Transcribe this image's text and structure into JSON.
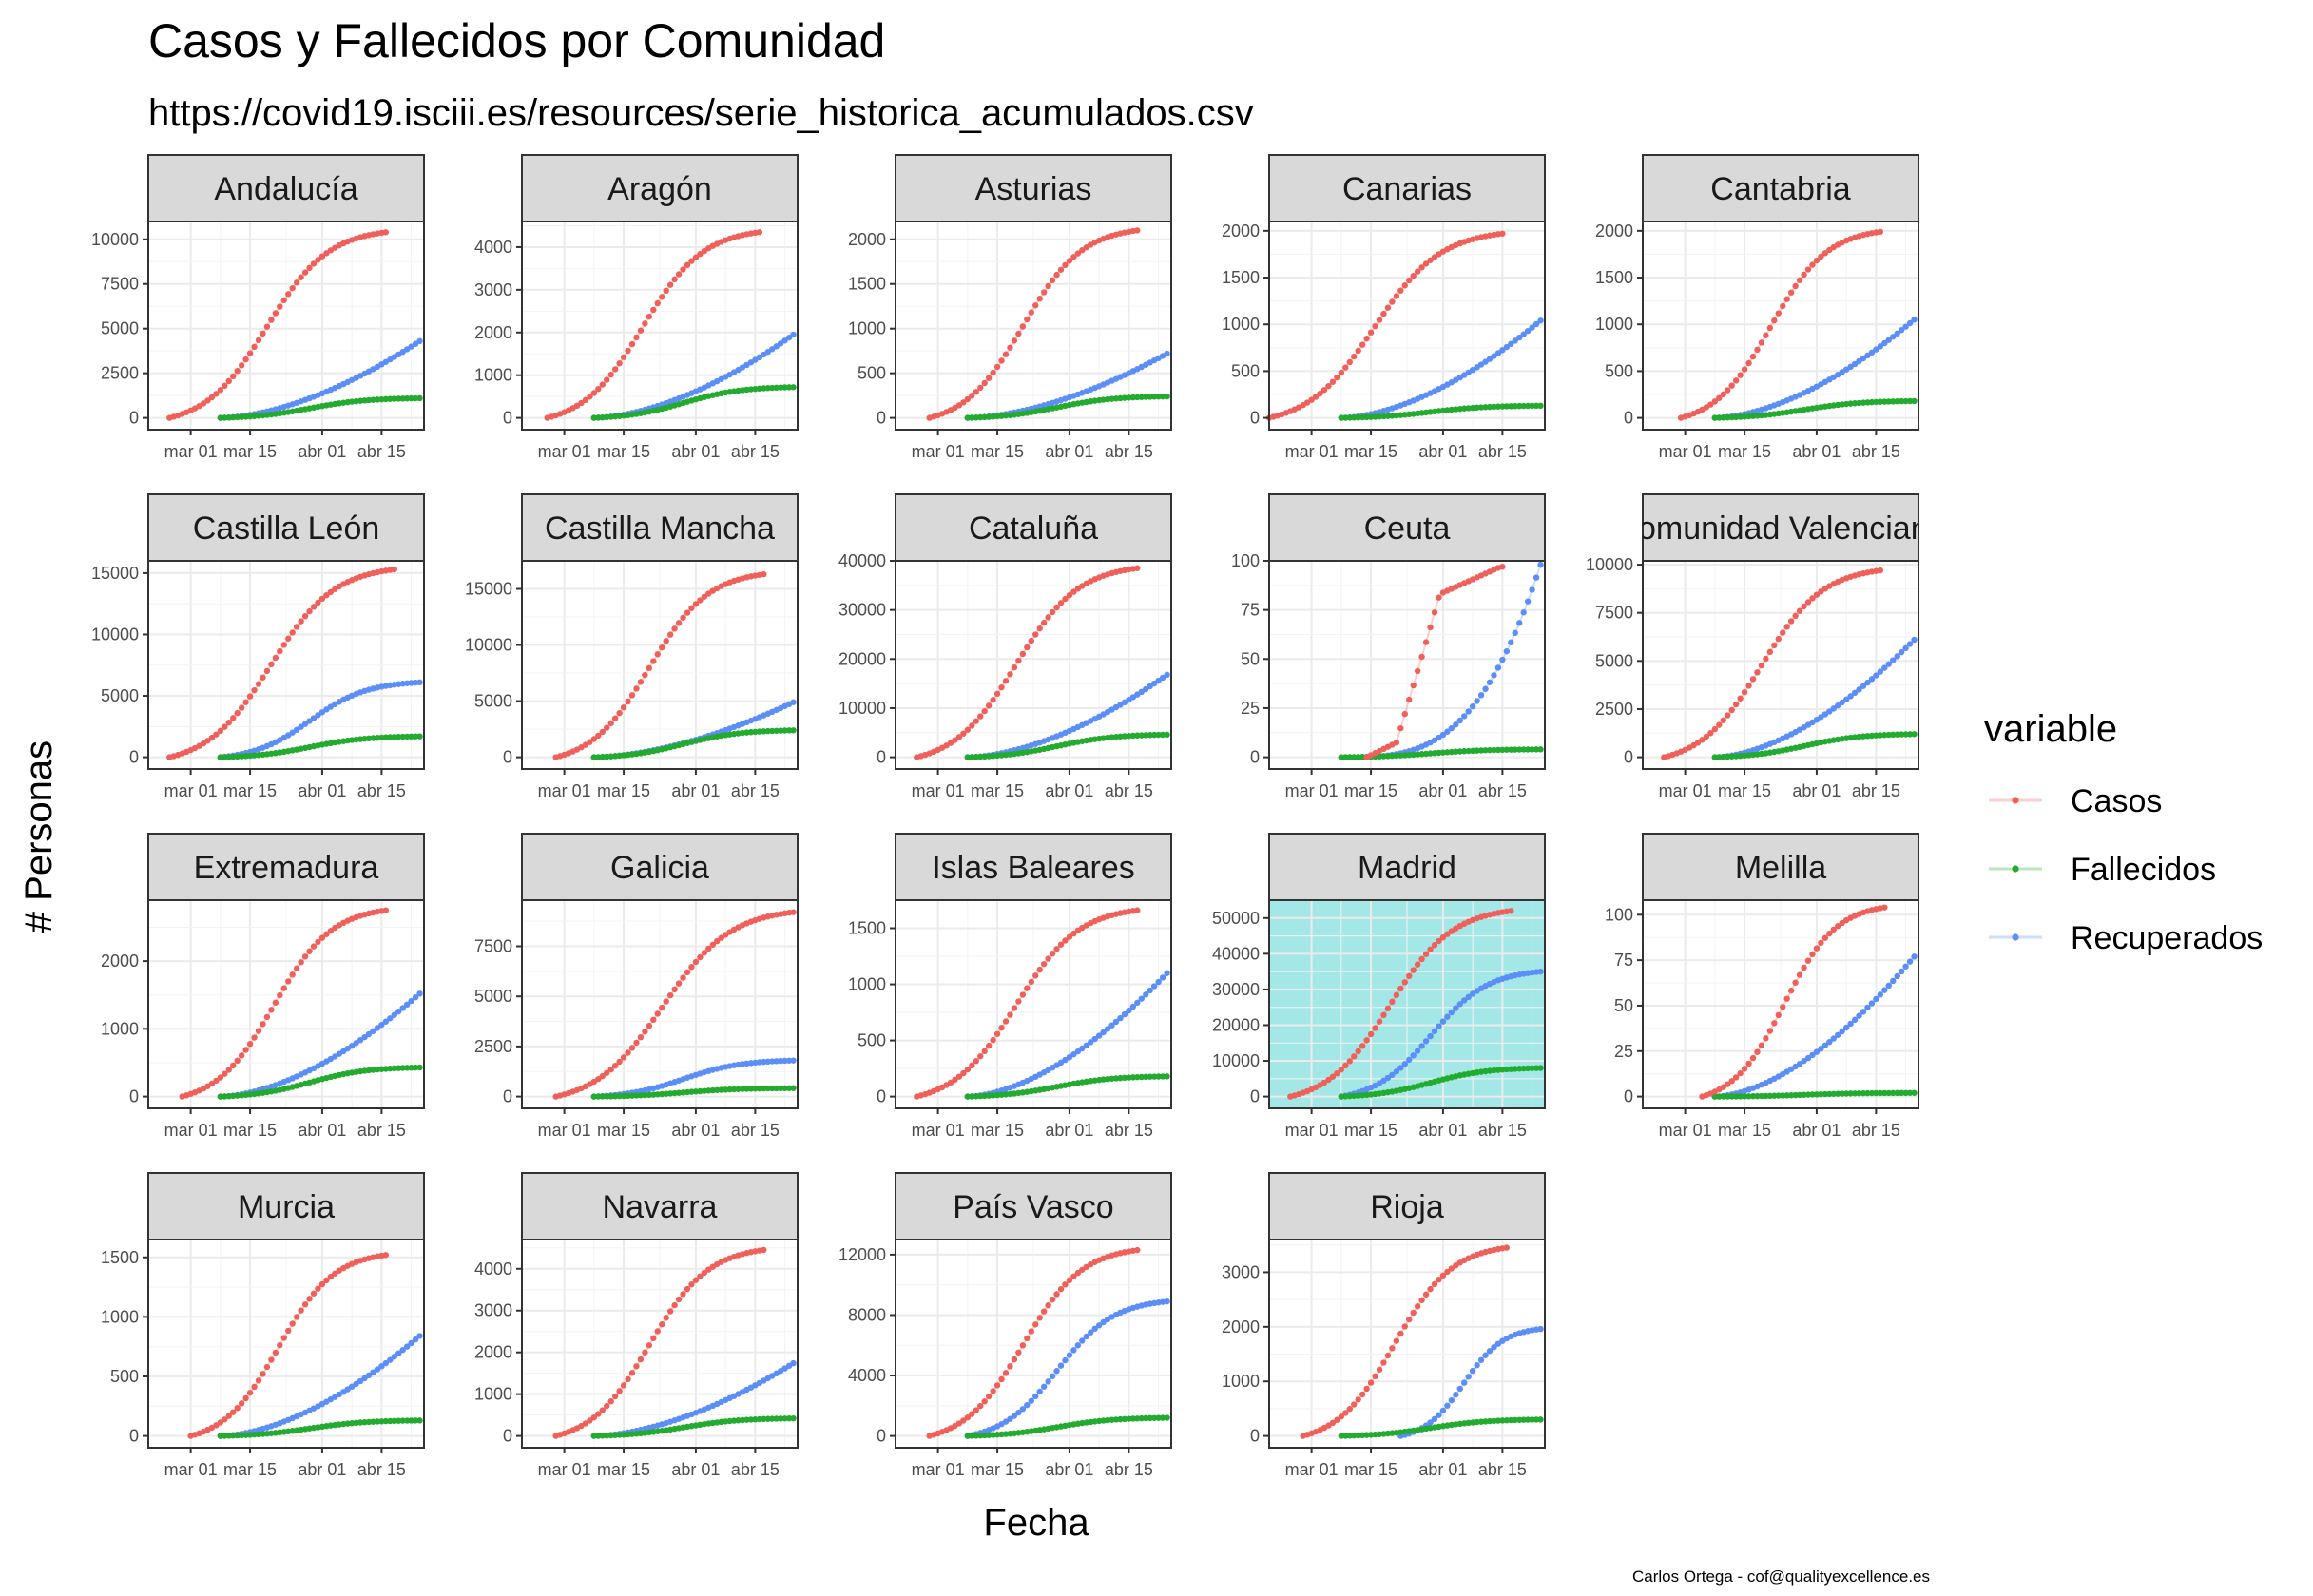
{
  "title": "Casos y Fallecidos por Comunidad",
  "subtitle": "https://covid19.isciii.es/resources/serie_historica_acumulados.csv",
  "caption": "Carlos Ortega - cof@qualityexcellence.es",
  "chart_data": {
    "type": "scatter",
    "xlabel": "Fecha",
    "ylabel": "# Personas",
    "x_ticks": [
      "mar 01",
      "mar 15",
      "abr 01",
      "abr 15"
    ],
    "x_range": [
      "2020-02-20",
      "2020-04-25"
    ],
    "legend": {
      "title": "variable",
      "position": "right",
      "entries": [
        {
          "name": "Casos",
          "color": "#f0605a"
        },
        {
          "name": "Fallecidos",
          "color": "#22ab2e"
        },
        {
          "name": "Recuperados",
          "color": "#5b8ef6"
        }
      ]
    },
    "grid": true,
    "highlight": {
      "panel": "Madrid",
      "color": "#a3e8e6"
    },
    "panels": [
      {
        "name": "Andalucía",
        "ymax": 11000,
        "yticks": [
          0,
          2500,
          5000,
          7500,
          10000
        ],
        "ytick_labels": [
          "0",
          "2500",
          "5000",
          "7500",
          "10000"
        ],
        "series": {
          "Casos": {
            "start": "2020-02-25",
            "end": "2020-04-16",
            "final": 10400,
            "shape": "s"
          },
          "Fallecidos": {
            "start": "2020-03-08",
            "end": "2020-04-24",
            "final": 1100,
            "shape": "s"
          },
          "Recuperados": {
            "start": "2020-03-08",
            "end": "2020-04-24",
            "final": 4300,
            "shape": "late"
          }
        }
      },
      {
        "name": "Aragón",
        "ymax": 4600,
        "yticks": [
          0,
          1000,
          2000,
          3000,
          4000
        ],
        "ytick_labels": [
          "0",
          "1000",
          "2000",
          "3000",
          "4000"
        ],
        "series": {
          "Casos": {
            "start": "2020-02-26",
            "end": "2020-04-16",
            "final": 4350,
            "shape": "s"
          },
          "Fallecidos": {
            "start": "2020-03-08",
            "end": "2020-04-24",
            "final": 720,
            "shape": "s"
          },
          "Recuperados": {
            "start": "2020-03-08",
            "end": "2020-04-24",
            "final": 1950,
            "shape": "late"
          }
        }
      },
      {
        "name": "Asturias",
        "ymax": 2200,
        "yticks": [
          0,
          500,
          1000,
          1500,
          2000
        ],
        "ytick_labels": [
          "0",
          "500",
          "1000",
          "1500",
          "2000"
        ],
        "series": {
          "Casos": {
            "start": "2020-02-28",
            "end": "2020-04-17",
            "final": 2100,
            "shape": "s"
          },
          "Fallecidos": {
            "start": "2020-03-08",
            "end": "2020-04-24",
            "final": 240,
            "shape": "s"
          },
          "Recuperados": {
            "start": "2020-03-08",
            "end": "2020-04-24",
            "final": 720,
            "shape": "late"
          }
        }
      },
      {
        "name": "Canarias",
        "ymax": 2100,
        "yticks": [
          0,
          500,
          1000,
          1500,
          2000
        ],
        "ytick_labels": [
          "0",
          "500",
          "1000",
          "1500",
          "2000"
        ],
        "series": {
          "Casos": {
            "start": "2020-02-20",
            "end": "2020-04-15",
            "final": 1970,
            "shape": "s"
          },
          "Fallecidos": {
            "start": "2020-03-08",
            "end": "2020-04-24",
            "final": 130,
            "shape": "s"
          },
          "Recuperados": {
            "start": "2020-03-08",
            "end": "2020-04-24",
            "final": 1040,
            "shape": "late"
          }
        }
      },
      {
        "name": "Cantabria",
        "ymax": 2100,
        "yticks": [
          0,
          500,
          1000,
          1500,
          2000
        ],
        "ytick_labels": [
          "0",
          "500",
          "1000",
          "1500",
          "2000"
        ],
        "series": {
          "Casos": {
            "start": "2020-02-29",
            "end": "2020-04-16",
            "final": 1990,
            "shape": "s"
          },
          "Fallecidos": {
            "start": "2020-03-08",
            "end": "2020-04-24",
            "final": 180,
            "shape": "s"
          },
          "Recuperados": {
            "start": "2020-03-08",
            "end": "2020-04-24",
            "final": 1050,
            "shape": "late"
          }
        }
      },
      {
        "name": "Castilla León",
        "ymax": 16000,
        "yticks": [
          0,
          5000,
          10000,
          15000
        ],
        "ytick_labels": [
          "0",
          "5000",
          "10000",
          "15000"
        ],
        "series": {
          "Casos": {
            "start": "2020-02-25",
            "end": "2020-04-18",
            "final": 15300,
            "shape": "s"
          },
          "Fallecidos": {
            "start": "2020-03-08",
            "end": "2020-04-24",
            "final": 1700,
            "shape": "s"
          },
          "Recuperados": {
            "start": "2020-03-08",
            "end": "2020-04-24",
            "final": 6100,
            "shape": "s"
          }
        }
      },
      {
        "name": "Castilla Mancha",
        "ymax": 17500,
        "yticks": [
          0,
          5000,
          10000,
          15000
        ],
        "ytick_labels": [
          "0",
          "5000",
          "10000",
          "15000"
        ],
        "series": {
          "Casos": {
            "start": "2020-02-28",
            "end": "2020-04-17",
            "final": 16300,
            "shape": "s"
          },
          "Fallecidos": {
            "start": "2020-03-08",
            "end": "2020-04-24",
            "final": 2400,
            "shape": "s"
          },
          "Recuperados": {
            "start": "2020-03-08",
            "end": "2020-04-24",
            "final": 4900,
            "shape": "late"
          }
        }
      },
      {
        "name": "Cataluña",
        "ymax": 40000,
        "yticks": [
          0,
          10000,
          20000,
          30000,
          40000
        ],
        "ytick_labels": [
          "0",
          "10000",
          "20000",
          "30000",
          "40000"
        ],
        "series": {
          "Casos": {
            "start": "2020-02-25",
            "end": "2020-04-17",
            "final": 38500,
            "shape": "s"
          },
          "Fallecidos": {
            "start": "2020-03-08",
            "end": "2020-04-24",
            "final": 4600,
            "shape": "s"
          },
          "Recuperados": {
            "start": "2020-03-08",
            "end": "2020-04-24",
            "final": 16800,
            "shape": "late"
          }
        }
      },
      {
        "name": "Ceuta",
        "ymax": 100,
        "yticks": [
          0,
          25,
          50,
          75,
          100
        ],
        "ytick_labels": [
          "0",
          "25",
          "50",
          "75",
          "100"
        ],
        "series": {
          "Casos": {
            "start": "2020-03-14",
            "end": "2020-04-15",
            "final": 97,
            "shape": "step"
          },
          "Fallecidos": {
            "start": "2020-03-08",
            "end": "2020-04-24",
            "final": 4,
            "shape": "s"
          },
          "Recuperados": {
            "start": "2020-03-08",
            "end": "2020-04-24",
            "final": 98,
            "shape": "verylate"
          }
        }
      },
      {
        "name": "Comunidad Valenciana",
        "ymax": 10200,
        "yticks": [
          0,
          2500,
          5000,
          7500,
          10000
        ],
        "ytick_labels": [
          "0",
          "2500",
          "5000",
          "7500",
          "10000"
        ],
        "series": {
          "Casos": {
            "start": "2020-02-25",
            "end": "2020-04-16",
            "final": 9700,
            "shape": "s"
          },
          "Fallecidos": {
            "start": "2020-03-08",
            "end": "2020-04-24",
            "final": 1200,
            "shape": "s"
          },
          "Recuperados": {
            "start": "2020-03-08",
            "end": "2020-04-24",
            "final": 6100,
            "shape": "late"
          }
        }
      },
      {
        "name": "Extremadura",
        "ymax": 2900,
        "yticks": [
          0,
          1000,
          2000
        ],
        "ytick_labels": [
          "0",
          "1000",
          "2000"
        ],
        "series": {
          "Casos": {
            "start": "2020-02-28",
            "end": "2020-04-16",
            "final": 2750,
            "shape": "s"
          },
          "Fallecidos": {
            "start": "2020-03-08",
            "end": "2020-04-24",
            "final": 430,
            "shape": "s"
          },
          "Recuperados": {
            "start": "2020-03-08",
            "end": "2020-04-24",
            "final": 1520,
            "shape": "late"
          }
        }
      },
      {
        "name": "Galicia",
        "ymax": 9800,
        "yticks": [
          0,
          2500,
          5000,
          7500
        ],
        "ytick_labels": [
          "0",
          "2500",
          "5000",
          "7500"
        ],
        "series": {
          "Casos": {
            "start": "2020-02-28",
            "end": "2020-04-24",
            "final": 9200,
            "shape": "s"
          },
          "Fallecidos": {
            "start": "2020-03-08",
            "end": "2020-04-24",
            "final": 420,
            "shape": "s"
          },
          "Recuperados": {
            "start": "2020-03-08",
            "end": "2020-04-24",
            "final": 1800,
            "shape": "s"
          }
        }
      },
      {
        "name": "Islas Baleares",
        "ymax": 1750,
        "yticks": [
          0,
          500,
          1000,
          1500
        ],
        "ytick_labels": [
          "0",
          "500",
          "1000",
          "1500"
        ],
        "series": {
          "Casos": {
            "start": "2020-02-25",
            "end": "2020-04-17",
            "final": 1660,
            "shape": "s"
          },
          "Fallecidos": {
            "start": "2020-03-08",
            "end": "2020-04-24",
            "final": 180,
            "shape": "s"
          },
          "Recuperados": {
            "start": "2020-03-08",
            "end": "2020-04-24",
            "final": 1100,
            "shape": "late"
          }
        }
      },
      {
        "name": "Madrid",
        "ymax": 55000,
        "yticks": [
          0,
          10000,
          20000,
          30000,
          40000,
          50000
        ],
        "ytick_labels": [
          "0",
          "10000",
          "20000",
          "30000",
          "40000",
          "50000"
        ],
        "series": {
          "Casos": {
            "start": "2020-02-25",
            "end": "2020-04-17",
            "final": 52000,
            "shape": "s"
          },
          "Fallecidos": {
            "start": "2020-03-08",
            "end": "2020-04-24",
            "final": 8000,
            "shape": "s"
          },
          "Recuperados": {
            "start": "2020-03-08",
            "end": "2020-04-24",
            "final": 35000,
            "shape": "s"
          }
        }
      },
      {
        "name": "Melilla",
        "ymax": 108,
        "yticks": [
          0,
          25,
          50,
          75,
          100
        ],
        "ytick_labels": [
          "0",
          "25",
          "50",
          "75",
          "100"
        ],
        "series": {
          "Casos": {
            "start": "2020-03-05",
            "end": "2020-04-17",
            "final": 104,
            "shape": "s"
          },
          "Fallecidos": {
            "start": "2020-03-08",
            "end": "2020-04-24",
            "final": 2,
            "shape": "s"
          },
          "Recuperados": {
            "start": "2020-03-08",
            "end": "2020-04-24",
            "final": 77,
            "shape": "late"
          }
        }
      },
      {
        "name": "Murcia",
        "ymax": 1650,
        "yticks": [
          0,
          500,
          1000,
          1500
        ],
        "ytick_labels": [
          "0",
          "500",
          "1000",
          "1500"
        ],
        "series": {
          "Casos": {
            "start": "2020-03-01",
            "end": "2020-04-16",
            "final": 1520,
            "shape": "s"
          },
          "Fallecidos": {
            "start": "2020-03-08",
            "end": "2020-04-24",
            "final": 130,
            "shape": "s"
          },
          "Recuperados": {
            "start": "2020-03-08",
            "end": "2020-04-24",
            "final": 840,
            "shape": "late"
          }
        }
      },
      {
        "name": "Navarra",
        "ymax": 4700,
        "yticks": [
          0,
          1000,
          2000,
          3000,
          4000
        ],
        "ytick_labels": [
          "0",
          "1000",
          "2000",
          "3000",
          "4000"
        ],
        "series": {
          "Casos": {
            "start": "2020-02-28",
            "end": "2020-04-17",
            "final": 4450,
            "shape": "s"
          },
          "Fallecidos": {
            "start": "2020-03-08",
            "end": "2020-04-24",
            "final": 420,
            "shape": "s"
          },
          "Recuperados": {
            "start": "2020-03-08",
            "end": "2020-04-24",
            "final": 1740,
            "shape": "late"
          }
        }
      },
      {
        "name": "País Vasco",
        "ymax": 13000,
        "yticks": [
          0,
          4000,
          8000,
          12000
        ],
        "ytick_labels": [
          "0",
          "4000",
          "8000",
          "12000"
        ],
        "series": {
          "Casos": {
            "start": "2020-02-28",
            "end": "2020-04-17",
            "final": 12300,
            "shape": "s"
          },
          "Fallecidos": {
            "start": "2020-03-08",
            "end": "2020-04-24",
            "final": 1200,
            "shape": "s"
          },
          "Recuperados": {
            "start": "2020-03-08",
            "end": "2020-04-24",
            "final": 8900,
            "shape": "s"
          }
        }
      },
      {
        "name": "Rioja",
        "ymax": 3600,
        "yticks": [
          0,
          1000,
          2000,
          3000
        ],
        "ytick_labels": [
          "0",
          "1000",
          "2000",
          "3000"
        ],
        "series": {
          "Casos": {
            "start": "2020-02-28",
            "end": "2020-04-16",
            "final": 3450,
            "shape": "s"
          },
          "Fallecidos": {
            "start": "2020-03-08",
            "end": "2020-04-24",
            "final": 300,
            "shape": "s"
          },
          "Recuperados": {
            "start": "2020-03-22",
            "end": "2020-04-24",
            "final": 1960,
            "shape": "s"
          }
        }
      }
    ]
  }
}
